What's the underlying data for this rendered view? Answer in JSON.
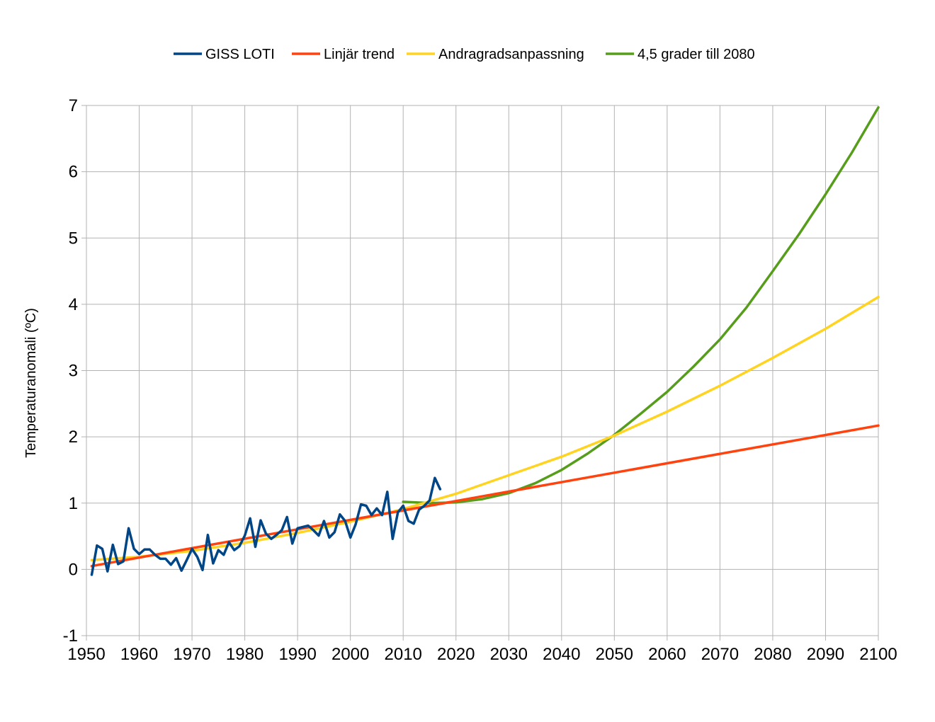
{
  "chart_data": {
    "type": "line",
    "title": "",
    "xlabel": "",
    "ylabel": "Temperaturanomali (ºC)",
    "xlim": [
      1950,
      2100
    ],
    "ylim": [
      -1,
      7
    ],
    "x_ticks": [
      1950,
      1960,
      1970,
      1980,
      1990,
      2000,
      2010,
      2020,
      2030,
      2040,
      2050,
      2060,
      2070,
      2080,
      2090,
      2100
    ],
    "y_ticks": [
      -1,
      0,
      1,
      2,
      3,
      4,
      5,
      6,
      7
    ],
    "grid": true,
    "legend_position": "top-center",
    "series": [
      {
        "name": "GISS LOTI",
        "color": "#004586",
        "x": [
          1951,
          1952,
          1953,
          1954,
          1955,
          1956,
          1957,
          1958,
          1959,
          1960,
          1961,
          1962,
          1963,
          1964,
          1965,
          1966,
          1967,
          1968,
          1969,
          1970,
          1971,
          1972,
          1973,
          1974,
          1975,
          1976,
          1977,
          1978,
          1979,
          1980,
          1981,
          1982,
          1983,
          1984,
          1985,
          1986,
          1987,
          1988,
          1989,
          1990,
          1991,
          1992,
          1993,
          1994,
          1995,
          1996,
          1997,
          1998,
          1999,
          2000,
          2001,
          2002,
          2003,
          2004,
          2005,
          2006,
          2007,
          2008,
          2009,
          2010,
          2011,
          2012,
          2013,
          2014,
          2015,
          2016,
          2017
        ],
        "values": [
          -0.08,
          0.36,
          0.31,
          -0.03,
          0.37,
          0.08,
          0.12,
          0.62,
          0.31,
          0.23,
          0.3,
          0.3,
          0.22,
          0.16,
          0.16,
          0.07,
          0.17,
          -0.02,
          0.14,
          0.31,
          0.19,
          -0.01,
          0.52,
          0.09,
          0.29,
          0.22,
          0.41,
          0.29,
          0.35,
          0.51,
          0.77,
          0.34,
          0.74,
          0.54,
          0.46,
          0.52,
          0.59,
          0.79,
          0.39,
          0.62,
          0.64,
          0.66,
          0.59,
          0.51,
          0.73,
          0.48,
          0.56,
          0.83,
          0.73,
          0.48,
          0.68,
          0.98,
          0.96,
          0.82,
          0.92,
          0.82,
          1.17,
          0.46,
          0.86,
          0.96,
          0.73,
          0.69,
          0.9,
          0.96,
          1.04,
          1.38,
          1.21
        ]
      },
      {
        "name": "Linjär trend",
        "color": "#ff420e",
        "x": [
          1951,
          2100
        ],
        "values": [
          0.05,
          2.17
        ]
      },
      {
        "name": "Andragradsanpassning",
        "color": "#ffd320",
        "x": [
          1951,
          1960,
          1970,
          1980,
          1990,
          2000,
          2010,
          2020,
          2030,
          2040,
          2050,
          2060,
          2070,
          2080,
          2090,
          2100
        ],
        "values": [
          0.14,
          0.19,
          0.28,
          0.4,
          0.55,
          0.72,
          0.91,
          1.14,
          1.42,
          1.7,
          2.02,
          2.38,
          2.77,
          3.19,
          3.63,
          4.11
        ]
      },
      {
        "name": "4,5 grader till 2080",
        "color": "#579d1c",
        "x": [
          2010,
          2015,
          2020,
          2025,
          2030,
          2035,
          2040,
          2045,
          2050,
          2055,
          2060,
          2065,
          2070,
          2075,
          2080,
          2085,
          2090,
          2095,
          2100
        ],
        "values": [
          1.02,
          1.0,
          1.01,
          1.06,
          1.15,
          1.3,
          1.5,
          1.75,
          2.03,
          2.35,
          2.68,
          3.06,
          3.47,
          3.95,
          4.5,
          5.06,
          5.66,
          6.29,
          6.97
        ]
      }
    ]
  }
}
